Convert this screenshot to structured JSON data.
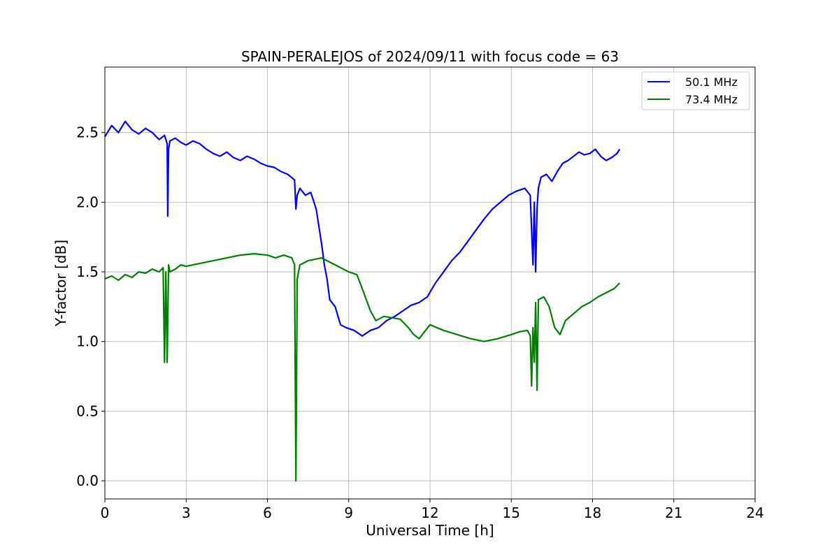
{
  "chart_data": {
    "type": "line",
    "title": "SPAIN-PERALEJOS of 2024/09/11 with focus code = 63",
    "xlabel": "Universal Time [h]",
    "ylabel": "Y-factor [dB]",
    "xlim": [
      0,
      24
    ],
    "ylim": [
      -0.13,
      2.97
    ],
    "xticks": [
      0,
      3,
      6,
      9,
      12,
      15,
      18,
      21,
      24
    ],
    "xtick_labels": [
      "0",
      "3",
      "6",
      "9",
      "12",
      "15",
      "18",
      "21",
      "24"
    ],
    "yticks": [
      0.0,
      0.5,
      1.0,
      1.5,
      2.0,
      2.5
    ],
    "ytick_labels": [
      "0.0",
      "0.5",
      "1.0",
      "1.5",
      "2.0",
      "2.5"
    ],
    "grid": true,
    "legend_position": "top-right",
    "series": [
      {
        "name": "50.1 MHz",
        "color": "#0000ff",
        "x": [
          0,
          0.25,
          0.5,
          0.75,
          1.0,
          1.25,
          1.5,
          1.75,
          2.0,
          2.2,
          2.3,
          2.32,
          2.35,
          2.4,
          2.6,
          2.8,
          3.0,
          3.25,
          3.5,
          3.75,
          4.0,
          4.25,
          4.5,
          4.75,
          5.0,
          5.25,
          5.5,
          5.75,
          6.0,
          6.25,
          6.5,
          6.75,
          7.0,
          7.05,
          7.1,
          7.2,
          7.4,
          7.6,
          7.8,
          8.0,
          8.1,
          8.2,
          8.3,
          8.5,
          8.7,
          8.9,
          9.2,
          9.5,
          9.8,
          10.1,
          10.4,
          10.7,
          11.0,
          11.3,
          11.6,
          11.9,
          12.2,
          12.5,
          12.8,
          13.1,
          13.4,
          13.7,
          14.0,
          14.3,
          14.6,
          14.9,
          15.2,
          15.5,
          15.7,
          15.8,
          15.85,
          15.9,
          15.95,
          16.0,
          16.1,
          16.3,
          16.5,
          16.7,
          16.9,
          17.1,
          17.3,
          17.5,
          17.7,
          17.9,
          18.1,
          18.3,
          18.5,
          18.7,
          18.9,
          19.0
        ],
        "values": [
          2.47,
          2.55,
          2.5,
          2.58,
          2.52,
          2.49,
          2.53,
          2.5,
          2.45,
          2.48,
          2.42,
          1.9,
          2.38,
          2.44,
          2.46,
          2.43,
          2.41,
          2.44,
          2.42,
          2.38,
          2.35,
          2.33,
          2.36,
          2.32,
          2.3,
          2.33,
          2.31,
          2.28,
          2.26,
          2.25,
          2.22,
          2.2,
          2.16,
          1.95,
          2.05,
          2.1,
          2.05,
          2.07,
          1.95,
          1.7,
          1.55,
          1.45,
          1.3,
          1.25,
          1.12,
          1.1,
          1.08,
          1.04,
          1.08,
          1.1,
          1.15,
          1.18,
          1.22,
          1.26,
          1.28,
          1.32,
          1.42,
          1.5,
          1.58,
          1.64,
          1.72,
          1.8,
          1.88,
          1.95,
          2.0,
          2.05,
          2.08,
          2.1,
          2.05,
          1.55,
          2.0,
          1.5,
          1.95,
          2.1,
          2.18,
          2.2,
          2.15,
          2.22,
          2.28,
          2.3,
          2.33,
          2.36,
          2.34,
          2.35,
          2.38,
          2.33,
          2.3,
          2.32,
          2.35,
          2.38
        ]
      },
      {
        "name": "73.4 MHz",
        "color": "#008000",
        "x": [
          0,
          0.25,
          0.5,
          0.75,
          1.0,
          1.25,
          1.5,
          1.75,
          2.0,
          2.15,
          2.2,
          2.25,
          2.3,
          2.35,
          2.4,
          2.6,
          2.8,
          3.0,
          3.5,
          4.0,
          4.5,
          5.0,
          5.5,
          6.0,
          6.3,
          6.6,
          6.9,
          7.0,
          7.05,
          7.1,
          7.2,
          7.5,
          8.0,
          8.5,
          9.0,
          9.3,
          9.5,
          9.8,
          10.0,
          10.3,
          10.6,
          10.9,
          11.2,
          11.4,
          11.6,
          12.0,
          12.5,
          13.0,
          13.5,
          14.0,
          14.5,
          15.0,
          15.3,
          15.6,
          15.7,
          15.75,
          15.8,
          15.85,
          15.9,
          15.95,
          16.0,
          16.2,
          16.4,
          16.6,
          16.8,
          17.0,
          17.3,
          17.6,
          17.9,
          18.2,
          18.5,
          18.8,
          19.0
        ],
        "values": [
          1.45,
          1.47,
          1.44,
          1.48,
          1.46,
          1.5,
          1.49,
          1.52,
          1.5,
          1.53,
          0.85,
          1.5,
          0.85,
          1.55,
          1.5,
          1.52,
          1.55,
          1.54,
          1.56,
          1.58,
          1.6,
          1.62,
          1.63,
          1.62,
          1.6,
          1.62,
          1.6,
          1.55,
          0.0,
          1.45,
          1.55,
          1.58,
          1.6,
          1.55,
          1.5,
          1.48,
          1.38,
          1.22,
          1.15,
          1.18,
          1.17,
          1.16,
          1.1,
          1.05,
          1.02,
          1.12,
          1.08,
          1.05,
          1.02,
          1.0,
          1.02,
          1.05,
          1.07,
          1.08,
          1.04,
          0.68,
          1.1,
          0.85,
          1.28,
          0.65,
          1.3,
          1.32,
          1.25,
          1.1,
          1.05,
          1.15,
          1.2,
          1.25,
          1.28,
          1.32,
          1.35,
          1.38,
          1.42
        ]
      }
    ]
  }
}
